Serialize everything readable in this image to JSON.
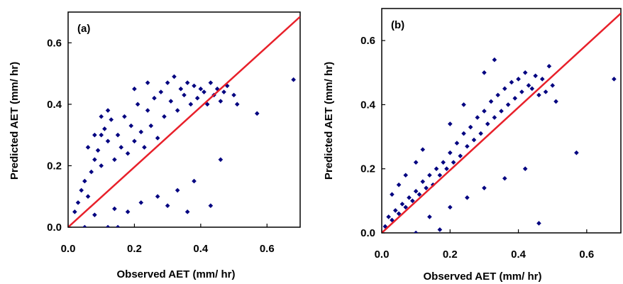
{
  "colors": {
    "points": "#000080",
    "line": "#e8202a",
    "axis": "#000000"
  },
  "chart_data": [
    {
      "type": "scatter",
      "panel_label": "(a)",
      "xlabel": "Observed AET (mm/ hr)",
      "ylabel": "Predicted AET (mm/ hr)",
      "xlim": [
        0,
        0.7
      ],
      "ylim": [
        0,
        0.7
      ],
      "x_ticks": [
        "0.0",
        "0.2",
        "0.4",
        "0.6"
      ],
      "y_ticks": [
        "0.0",
        "0.2",
        "0.4",
        "0.6"
      ],
      "grid": false,
      "reference_line": {
        "x": [
          0,
          0.7
        ],
        "y": [
          0,
          0.685
        ]
      },
      "series": [
        {
          "points": [
            [
              0.02,
              0.05
            ],
            [
              0.03,
              0.08
            ],
            [
              0.04,
              0.12
            ],
            [
              0.05,
              0.15
            ],
            [
              0.06,
              0.1
            ],
            [
              0.07,
              0.18
            ],
            [
              0.08,
              0.22
            ],
            [
              0.09,
              0.25
            ],
            [
              0.1,
              0.2
            ],
            [
              0.1,
              0.3
            ],
            [
              0.11,
              0.32
            ],
            [
              0.12,
              0.28
            ],
            [
              0.13,
              0.35
            ],
            [
              0.14,
              0.22
            ],
            [
              0.15,
              0.3
            ],
            [
              0.16,
              0.26
            ],
            [
              0.17,
              0.36
            ],
            [
              0.18,
              0.24
            ],
            [
              0.19,
              0.33
            ],
            [
              0.2,
              0.28
            ],
            [
              0.21,
              0.4
            ],
            [
              0.22,
              0.31
            ],
            [
              0.23,
              0.26
            ],
            [
              0.24,
              0.38
            ],
            [
              0.25,
              0.33
            ],
            [
              0.26,
              0.42
            ],
            [
              0.27,
              0.29
            ],
            [
              0.28,
              0.44
            ],
            [
              0.29,
              0.36
            ],
            [
              0.3,
              0.47
            ],
            [
              0.31,
              0.41
            ],
            [
              0.32,
              0.49
            ],
            [
              0.33,
              0.38
            ],
            [
              0.34,
              0.45
            ],
            [
              0.35,
              0.43
            ],
            [
              0.36,
              0.47
            ],
            [
              0.37,
              0.4
            ],
            [
              0.38,
              0.46
            ],
            [
              0.39,
              0.42
            ],
            [
              0.4,
              0.45
            ],
            [
              0.41,
              0.44
            ],
            [
              0.42,
              0.4
            ],
            [
              0.43,
              0.47
            ],
            [
              0.44,
              0.43
            ],
            [
              0.45,
              0.45
            ],
            [
              0.46,
              0.41
            ],
            [
              0.47,
              0.44
            ],
            [
              0.48,
              0.46
            ],
            [
              0.5,
              0.43
            ],
            [
              0.51,
              0.4
            ],
            [
              0.57,
              0.37
            ],
            [
              0.68,
              0.48
            ],
            [
              0.36,
              0.05
            ],
            [
              0.43,
              0.07
            ],
            [
              0.3,
              0.07
            ],
            [
              0.05,
              0.0
            ],
            [
              0.12,
              0.0
            ],
            [
              0.15,
              0.0
            ],
            [
              0.46,
              0.22
            ],
            [
              0.38,
              0.15
            ],
            [
              0.33,
              0.12
            ],
            [
              0.27,
              0.1
            ],
            [
              0.22,
              0.08
            ],
            [
              0.18,
              0.05
            ],
            [
              0.14,
              0.06
            ],
            [
              0.08,
              0.04
            ],
            [
              0.06,
              0.26
            ],
            [
              0.08,
              0.3
            ],
            [
              0.1,
              0.36
            ],
            [
              0.12,
              0.38
            ],
            [
              0.2,
              0.45
            ],
            [
              0.24,
              0.47
            ]
          ]
        }
      ]
    },
    {
      "type": "scatter",
      "panel_label": "(b)",
      "xlabel": "Observed AET (mm/ hr)",
      "ylabel": "Predicted AET (mm/ hr)",
      "xlim": [
        0,
        0.7
      ],
      "ylim": [
        0,
        0.7
      ],
      "x_ticks": [
        "0.0",
        "0.2",
        "0.4",
        "0.6"
      ],
      "y_ticks": [
        "0.0",
        "0.2",
        "0.4",
        "0.6"
      ],
      "grid": false,
      "reference_line": {
        "x": [
          0,
          0.7
        ],
        "y": [
          0,
          0.685
        ]
      },
      "series": [
        {
          "points": [
            [
              0.01,
              0.02
            ],
            [
              0.02,
              0.05
            ],
            [
              0.03,
              0.04
            ],
            [
              0.04,
              0.07
            ],
            [
              0.05,
              0.06
            ],
            [
              0.06,
              0.09
            ],
            [
              0.07,
              0.08
            ],
            [
              0.08,
              0.11
            ],
            [
              0.09,
              0.1
            ],
            [
              0.1,
              0.13
            ],
            [
              0.11,
              0.12
            ],
            [
              0.12,
              0.16
            ],
            [
              0.13,
              0.14
            ],
            [
              0.14,
              0.18
            ],
            [
              0.15,
              0.15
            ],
            [
              0.16,
              0.2
            ],
            [
              0.17,
              0.18
            ],
            [
              0.18,
              0.22
            ],
            [
              0.19,
              0.2
            ],
            [
              0.2,
              0.25
            ],
            [
              0.21,
              0.22
            ],
            [
              0.22,
              0.28
            ],
            [
              0.23,
              0.24
            ],
            [
              0.24,
              0.31
            ],
            [
              0.25,
              0.27
            ],
            [
              0.26,
              0.33
            ],
            [
              0.27,
              0.29
            ],
            [
              0.28,
              0.36
            ],
            [
              0.29,
              0.31
            ],
            [
              0.3,
              0.38
            ],
            [
              0.31,
              0.34
            ],
            [
              0.32,
              0.41
            ],
            [
              0.33,
              0.36
            ],
            [
              0.34,
              0.43
            ],
            [
              0.35,
              0.38
            ],
            [
              0.36,
              0.45
            ],
            [
              0.37,
              0.4
            ],
            [
              0.38,
              0.47
            ],
            [
              0.39,
              0.42
            ],
            [
              0.4,
              0.48
            ],
            [
              0.41,
              0.44
            ],
            [
              0.42,
              0.5
            ],
            [
              0.43,
              0.46
            ],
            [
              0.44,
              0.45
            ],
            [
              0.45,
              0.49
            ],
            [
              0.46,
              0.43
            ],
            [
              0.47,
              0.48
            ],
            [
              0.48,
              0.44
            ],
            [
              0.49,
              0.52
            ],
            [
              0.5,
              0.46
            ],
            [
              0.51,
              0.41
            ],
            [
              0.33,
              0.54
            ],
            [
              0.3,
              0.5
            ],
            [
              0.57,
              0.25
            ],
            [
              0.68,
              0.48
            ],
            [
              0.46,
              0.03
            ],
            [
              0.17,
              0.01
            ],
            [
              0.1,
              0.0
            ],
            [
              0.42,
              0.2
            ],
            [
              0.36,
              0.17
            ],
            [
              0.3,
              0.14
            ],
            [
              0.25,
              0.11
            ],
            [
              0.2,
              0.08
            ],
            [
              0.14,
              0.05
            ],
            [
              0.03,
              0.12
            ],
            [
              0.05,
              0.15
            ],
            [
              0.07,
              0.18
            ],
            [
              0.1,
              0.22
            ],
            [
              0.12,
              0.26
            ],
            [
              0.2,
              0.34
            ],
            [
              0.24,
              0.4
            ]
          ]
        }
      ]
    }
  ]
}
